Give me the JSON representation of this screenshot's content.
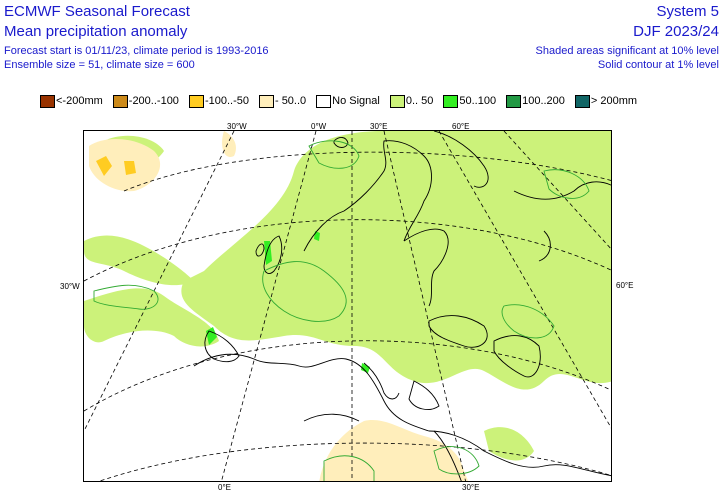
{
  "header": {
    "title_left": "ECMWF Seasonal Forecast",
    "subtitle_left": "Mean precipitation anomaly",
    "info_line1": "Forecast start is 01/11/23, climate period is 1993-2016",
    "info_line2": "Ensemble size = 51, climate size = 600",
    "title_right": "System 5",
    "season_right": "DJF 2023/24",
    "note_line1": "Shaded areas significant at 10% level",
    "note_line2": "Solid contour at 1% level"
  },
  "legend": [
    {
      "label": "<-200mm",
      "color": "#993300"
    },
    {
      "label": "-200..-100",
      "color": "#cc8a1a"
    },
    {
      "label": "-100..-50",
      "color": "#ffcc22"
    },
    {
      "label": "- 50..0",
      "color": "#ffeebb"
    },
    {
      "label": "No Signal",
      "color": "#ffffff"
    },
    {
      "label": "0.. 50",
      "color": "#ccf27a"
    },
    {
      "label": "50..100",
      "color": "#33ee22"
    },
    {
      "label": "100..200",
      "color": "#229944"
    },
    {
      "label": "> 200mm",
      "color": "#116666"
    }
  ],
  "map": {
    "labels": {
      "lon_top_30w": "30°W",
      "lon_top_0": "0°W",
      "lon_top_30e": "30°E",
      "lon_top_60e": "60°E",
      "lat_left": "30°W",
      "lat_right": "60°E",
      "lon_bottom_0": "0°E",
      "lon_bottom_30e": "30°E"
    },
    "colors": {
      "positive_light": "#ccf27a",
      "positive_medium": "#33ee22",
      "negative_light": "#ffeebb",
      "negative_medium": "#ffcc22",
      "contour": "#33aa33",
      "coast": "#000000"
    }
  }
}
